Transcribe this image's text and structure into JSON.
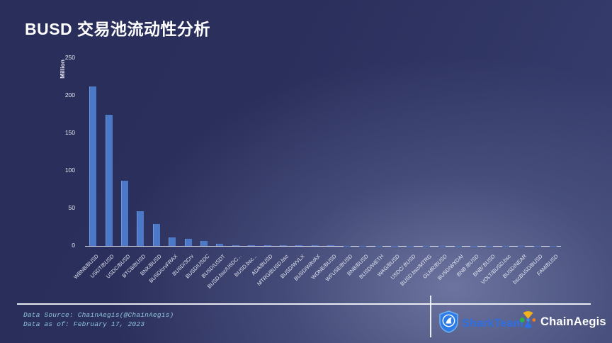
{
  "slide": {
    "title": "BUSD 交易池流动性分析"
  },
  "chart_data": {
    "type": "bar",
    "title": "BUSD 交易池流动性分析",
    "xlabel": "",
    "ylabel": "Million",
    "ylim": [
      0,
      250
    ],
    "yticks": [
      0,
      50,
      100,
      150,
      200,
      250
    ],
    "grid": false,
    "legend": "none",
    "bar_color": "#4b79c8",
    "categories": [
      "WBNB/BUSD",
      "USDT/BUSD",
      "USDC/BUSD",
      "BTCB/BUSD",
      "BNX/BUSD",
      "BUSD/crvFRAX",
      "BUSD/3Crv",
      "BUSD/USDC",
      "BUSD/USDT",
      "BUSD.bsc/USDC...",
      "BUSD.bsc...",
      "ADA/BUSD",
      "MTRG/BUSD.bsc",
      "BUSD/WVLX",
      "BUSD/WAVAX",
      "WONE/BUSD",
      "WFUSE/BUSD",
      "BNB/BUSD",
      "BUSD/WETH",
      "WAG/BUSD",
      "USDC/ BUSD",
      "BUSD.bsc/MTRG",
      "GLMR/BUSD",
      "BUSD/WXDAI",
      "BNB /BUSD",
      "BNB/ BUSD",
      "VOLT/BUSD.bsc",
      "BUSD/NEAR",
      "bscBUSD/BUSD",
      "FAM/BUSD"
    ],
    "values": [
      212,
      175,
      87,
      46,
      29,
      11,
      9,
      6.5,
      2.5,
      1.3,
      0.9,
      0.8,
      0.7,
      0.6,
      0.5,
      0.5,
      0.4,
      0.4,
      0.3,
      0.3,
      0.3,
      0.2,
      0.2,
      0.2,
      0.2,
      0.1,
      0.1,
      0.1,
      0.1,
      0.1
    ]
  },
  "footer": {
    "source_line": "Data Source: ChainAegis(@ChainAegis)",
    "date_line": "Data as of: February 17, 2023",
    "sharkteam_label": "SharkTeam",
    "chainaegis_label": "ChainAegis"
  },
  "icons": {
    "sharkteam_logo": "shield-shark-fin-icon",
    "chainaegis_logo": "hourglass-gem-icon"
  },
  "colors": {
    "background_dark": "#2a2e5a",
    "background_light": "#6c76a0",
    "bar": "#4b79c8",
    "axis_line": "#e8ecf8",
    "title_text": "#ffffff",
    "source_text": "#8fc6dc",
    "sharkteam_text": "#2f6fe0",
    "chainaegis_text": "#ffffff"
  }
}
